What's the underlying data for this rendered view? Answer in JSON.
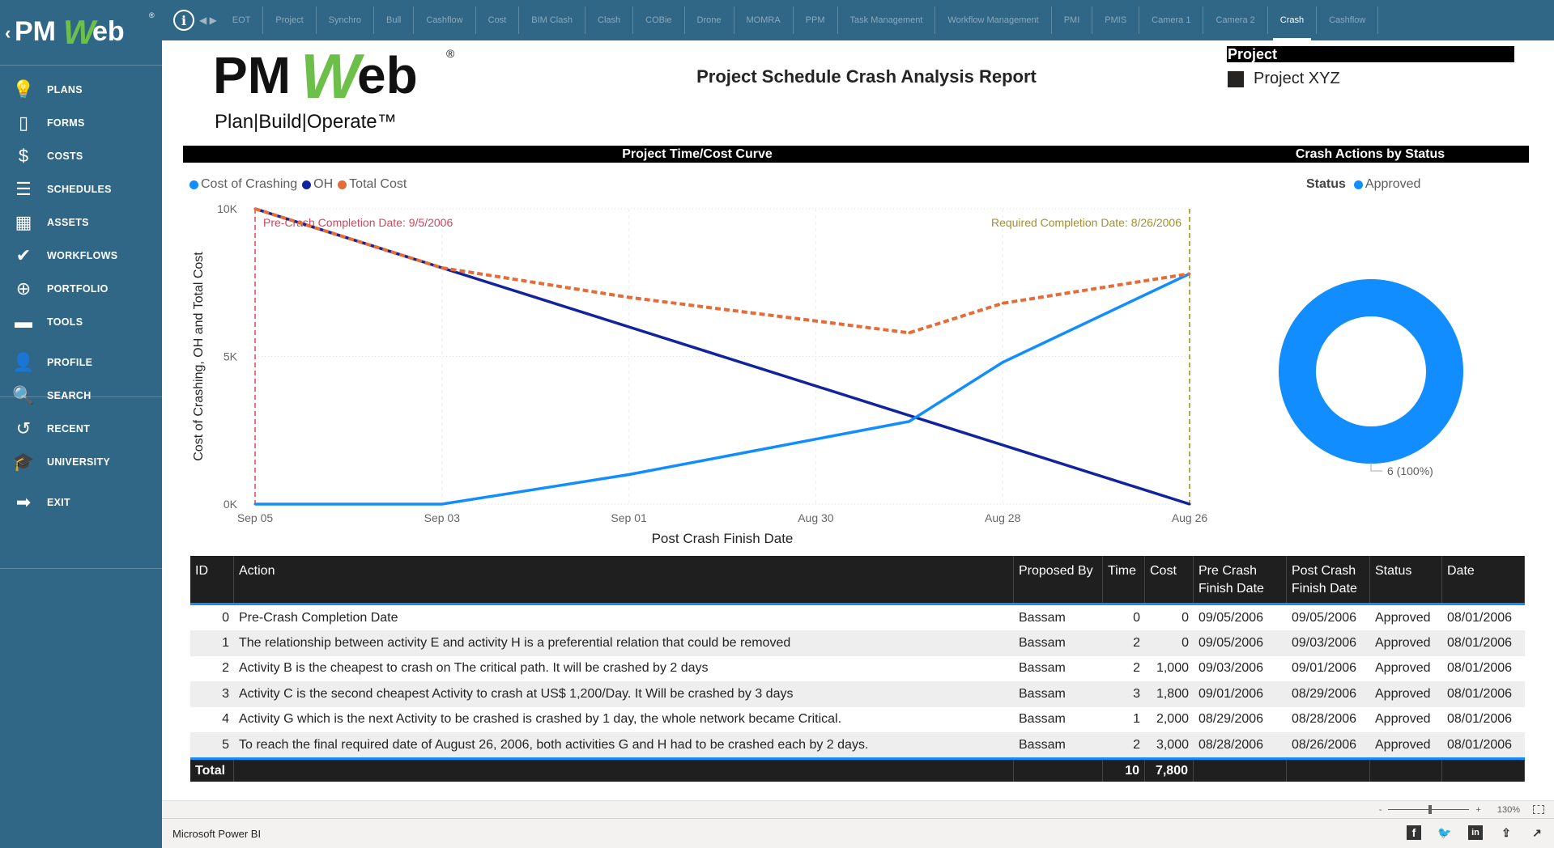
{
  "sidebar": {
    "logo": "PMWeb",
    "items": [
      {
        "label": "PLANS",
        "icon": "lightbulb-icon",
        "glyph": "💡"
      },
      {
        "label": "FORMS",
        "icon": "form-icon",
        "glyph": "▯"
      },
      {
        "label": "COSTS",
        "icon": "dollar-icon",
        "glyph": "$"
      },
      {
        "label": "SCHEDULES",
        "icon": "schedule-bars-icon",
        "glyph": "☰"
      },
      {
        "label": "ASSETS",
        "icon": "building-icon",
        "glyph": "▦"
      },
      {
        "label": "WORKFLOWS",
        "icon": "checkmark-icon",
        "glyph": "✔"
      },
      {
        "label": "PORTFOLIO",
        "icon": "globe-icon",
        "glyph": "⊕"
      },
      {
        "label": "TOOLS",
        "icon": "toolbox-icon",
        "glyph": "▬"
      },
      {
        "label": "PROFILE",
        "icon": "user-icon",
        "glyph": "👤"
      },
      {
        "label": "SEARCH",
        "icon": "search-icon",
        "glyph": "🔍"
      },
      {
        "label": "RECENT",
        "icon": "history-icon",
        "glyph": "↺"
      },
      {
        "label": "UNIVERSITY",
        "icon": "graduation-cap-icon",
        "glyph": "🎓"
      },
      {
        "label": "EXIT",
        "icon": "exit-icon",
        "glyph": "➡"
      }
    ]
  },
  "tabs": [
    "EOT",
    "Project",
    "Synchro",
    "Bull",
    "Cashflow",
    "Cost",
    "BIM Clash",
    "Clash",
    "COBie",
    "Drone",
    "MOMRA",
    "PPM",
    "Task Management",
    "Workflow Management",
    "PMI",
    "PMIS",
    "Camera 1",
    "Camera 2",
    "Crash",
    "Cashflow"
  ],
  "active_tab": "Crash",
  "report": {
    "logo_text": "PMWeb",
    "logo_tagline": "Plan|Build|Operate™",
    "title": "Project Schedule Crash Analysis Report",
    "slicer": {
      "header": "Project",
      "item": "Project XYZ"
    },
    "chart_header": "Project Time/Cost Curve",
    "donut_header": "Crash Actions by Status"
  },
  "colors": {
    "crash": "#118DFF",
    "oh": "#12239E",
    "total": "#E66C37",
    "precrash_line": "#E8737E",
    "required_line": "#B3A844",
    "sidebar": "#306686"
  },
  "chart_data": [
    {
      "type": "line",
      "title": "Project Time/Cost Curve",
      "xlabel": "Post Crash Finish Date",
      "ylabel": "Cost of Crashing, OH and Total Cost",
      "x": [
        "2006-09-05",
        "2006-09-03",
        "2006-09-01",
        "2006-08-29",
        "2006-08-28",
        "2006-08-26"
      ],
      "x_reversed": true,
      "xticks": [
        {
          "date": "2006-09-05",
          "label": "Sep 05"
        },
        {
          "date": "2006-09-03",
          "label": "Sep 03"
        },
        {
          "date": "2006-09-01",
          "label": "Sep 01"
        },
        {
          "date": "2006-08-30",
          "label": "Aug 30"
        },
        {
          "date": "2006-08-28",
          "label": "Aug 28"
        },
        {
          "date": "2006-08-26",
          "label": "Aug 26"
        }
      ],
      "yticks": [
        {
          "v": 0,
          "label": "0K"
        },
        {
          "v": 5000,
          "label": "5K"
        },
        {
          "v": 10000,
          "label": "10K"
        }
      ],
      "ylim": [
        0,
        10000
      ],
      "grid": true,
      "legend_position": "top-left",
      "series": [
        {
          "name": "Cost of Crashing",
          "values": [
            0,
            0,
            1000,
            2800,
            4800,
            7800
          ],
          "style": "solid"
        },
        {
          "name": "OH",
          "values": [
            10000,
            8000,
            6000,
            3000,
            2000,
            0
          ],
          "style": "solid"
        },
        {
          "name": "Total Cost",
          "values": [
            10000,
            8000,
            7000,
            5800,
            6800,
            7800
          ],
          "style": "dashed"
        }
      ],
      "reference_lines": [
        {
          "date": "2006-09-05",
          "label": "Pre-Crash Completion Date: 9/5/2006"
        },
        {
          "date": "2006-08-26",
          "label": "Required Completion Date: 8/26/2006"
        }
      ]
    },
    {
      "type": "pie",
      "donut": true,
      "title": "Crash Actions by Status",
      "legend_title": "Status",
      "legend_position": "top",
      "categories": [
        "Approved"
      ],
      "values": [
        6
      ],
      "data_label": "6 (100%)"
    }
  ],
  "table": {
    "headers": [
      "ID",
      "Action",
      "Proposed By",
      "Time",
      "Cost",
      "Pre Crash Finish Date",
      "Post Crash Finish Date",
      "Status",
      "Date"
    ],
    "rows": [
      [
        "0",
        "Pre-Crash Completion Date",
        "Bassam",
        "0",
        "0",
        "09/05/2006",
        "09/05/2006",
        "Approved",
        "08/01/2006"
      ],
      [
        "1",
        "The relationship between activity E and activity H is a preferential relation that could be removed",
        "Bassam",
        "2",
        "0",
        "09/05/2006",
        "09/03/2006",
        "Approved",
        "08/01/2006"
      ],
      [
        "2",
        "Activity B is the cheapest to crash on The critical path. It will be crashed by 2 days",
        "Bassam",
        "2",
        "1,000",
        "09/03/2006",
        "09/01/2006",
        "Approved",
        "08/01/2006"
      ],
      [
        "3",
        "Activity C is the second cheapest Activity to crash at US$ 1,200/Day. It Will be crashed by 3 days",
        "Bassam",
        "3",
        "1,800",
        "09/01/2006",
        "08/29/2006",
        "Approved",
        "08/01/2006"
      ],
      [
        "4",
        "Activity G which is the next Activity to be crashed is crashed by 1 day, the whole network became Critical.",
        "Bassam",
        "1",
        "2,000",
        "08/29/2006",
        "08/28/2006",
        "Approved",
        "08/01/2006"
      ],
      [
        "5",
        "To reach the final required date of August 26, 2006, both activities G and H had to be crashed each by 2 days.",
        "Bassam",
        "2",
        "3,000",
        "08/28/2006",
        "08/26/2006",
        "Approved",
        "08/01/2006"
      ]
    ],
    "total": {
      "label": "Total",
      "time": "10",
      "cost": "7,800"
    }
  },
  "zoom": {
    "minus": "-",
    "plus": "+",
    "level": "130%",
    "level_fraction": 0.5
  },
  "footer": {
    "brand": "Microsoft Power BI",
    "share": [
      "facebook-icon",
      "twitter-icon",
      "linkedin-icon",
      "share-icon",
      "popout-icon"
    ]
  }
}
